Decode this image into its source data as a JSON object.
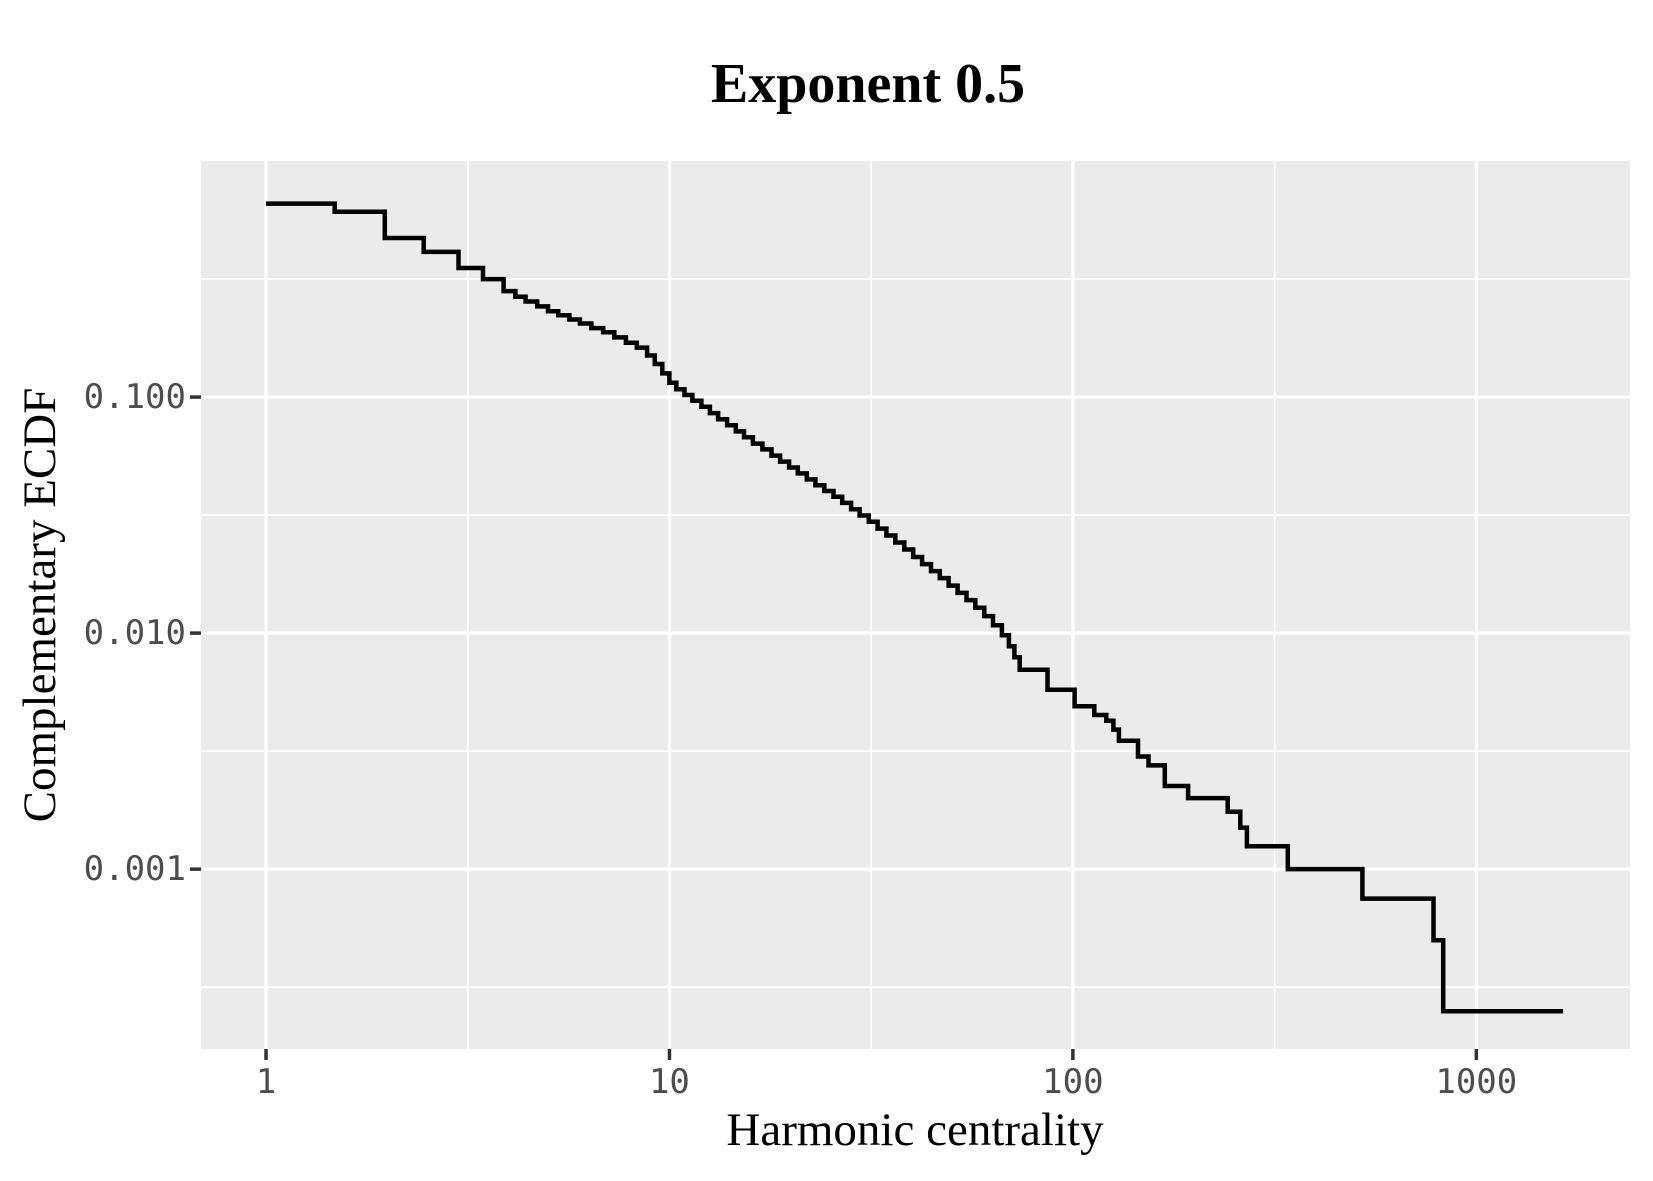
{
  "title": "Exponent 0.5",
  "axes": {
    "x_title": "Harmonic centrality",
    "y_title": "Complementary ECDF",
    "x_tick_labels": [
      "1",
      "10",
      "100",
      "1000"
    ],
    "y_tick_labels": [
      "0.100",
      "0.010",
      "0.001"
    ]
  },
  "style": {
    "panel_bg": "#EBEBEB",
    "grid_color": "#FFFFFF",
    "line_color": "#000000",
    "tick_color": "#333333",
    "tick_label_color": "#4D4D4D"
  },
  "chart_data": {
    "type": "line",
    "subtype": "step-complementary-ecdf",
    "title": "Exponent 0.5",
    "xlabel": "Harmonic centrality",
    "ylabel": "Complementary ECDF",
    "log_x": true,
    "log_y": true,
    "grid": "major+minor",
    "legend": "none",
    "x_ticks": [
      1,
      10,
      100,
      1000
    ],
    "y_ticks": [
      0.1,
      0.01,
      0.001
    ],
    "x_minor_ticks": [
      3.1623,
      31.623,
      316.23
    ],
    "y_minor_ticks": [
      0.31623,
      0.031623,
      0.0031623,
      0.00031623
    ],
    "xlim": [
      0.69,
      2404
    ],
    "ylim": [
      0.000173,
      1.0
    ],
    "x_end": 1641,
    "points": [
      [
        1.0,
        0.66
      ],
      [
        1.48,
        0.61
      ],
      [
        1.97,
        0.472
      ],
      [
        2.46,
        0.412
      ],
      [
        3.0,
        0.352
      ],
      [
        3.45,
        0.316
      ],
      [
        3.88,
        0.281
      ],
      [
        4.15,
        0.266
      ],
      [
        4.4,
        0.254
      ],
      [
        4.7,
        0.242
      ],
      [
        5.0,
        0.231
      ],
      [
        5.3,
        0.222
      ],
      [
        5.65,
        0.213
      ],
      [
        6.0,
        0.205
      ],
      [
        6.4,
        0.196
      ],
      [
        6.85,
        0.188
      ],
      [
        7.3,
        0.179
      ],
      [
        7.8,
        0.17
      ],
      [
        8.3,
        0.162
      ],
      [
        8.8,
        0.15
      ],
      [
        9.2,
        0.138
      ],
      [
        9.6,
        0.126
      ],
      [
        10.0,
        0.115
      ],
      [
        10.4,
        0.108
      ],
      [
        10.9,
        0.102
      ],
      [
        11.4,
        0.0965
      ],
      [
        12.0,
        0.091
      ],
      [
        12.6,
        0.0855
      ],
      [
        13.2,
        0.0805
      ],
      [
        13.9,
        0.076
      ],
      [
        14.6,
        0.0715
      ],
      [
        15.3,
        0.0675
      ],
      [
        16.1,
        0.0635
      ],
      [
        17.0,
        0.06
      ],
      [
        17.9,
        0.0565
      ],
      [
        18.8,
        0.0533
      ],
      [
        19.8,
        0.0503
      ],
      [
        20.8,
        0.0475
      ],
      [
        21.9,
        0.0448
      ],
      [
        23.0,
        0.0423
      ],
      [
        24.2,
        0.04
      ],
      [
        25.5,
        0.0378
      ],
      [
        26.8,
        0.0356
      ],
      [
        28.2,
        0.0335
      ],
      [
        29.6,
        0.0315
      ],
      [
        31.2,
        0.0296
      ],
      [
        32.8,
        0.0277
      ],
      [
        34.5,
        0.0259
      ],
      [
        36.3,
        0.0242
      ],
      [
        38.2,
        0.0226
      ],
      [
        40.2,
        0.021
      ],
      [
        42.3,
        0.0196
      ],
      [
        44.5,
        0.0183
      ],
      [
        46.8,
        0.0171
      ],
      [
        49.2,
        0.0159
      ],
      [
        51.8,
        0.0148
      ],
      [
        54.5,
        0.0138
      ],
      [
        57.3,
        0.0128
      ],
      [
        60.3,
        0.0118
      ],
      [
        63.4,
        0.0108
      ],
      [
        66.7,
        0.0098
      ],
      [
        69.4,
        0.0088
      ],
      [
        71.6,
        0.0079
      ],
      [
        73.8,
        0.007
      ],
      [
        86.5,
        0.00575
      ],
      [
        101,
        0.0049
      ],
      [
        113,
        0.0045
      ],
      [
        121,
        0.00425
      ],
      [
        126,
        0.0039
      ],
      [
        130,
        0.0035
      ],
      [
        145,
        0.003
      ],
      [
        154,
        0.00275
      ],
      [
        169,
        0.00225
      ],
      [
        193,
        0.002
      ],
      [
        242,
        0.00175
      ],
      [
        260,
        0.0015
      ],
      [
        270,
        0.00125
      ],
      [
        341,
        0.001
      ],
      [
        522,
        0.00075
      ],
      [
        783,
        0.0005
      ],
      [
        828,
        0.00025
      ]
    ]
  }
}
